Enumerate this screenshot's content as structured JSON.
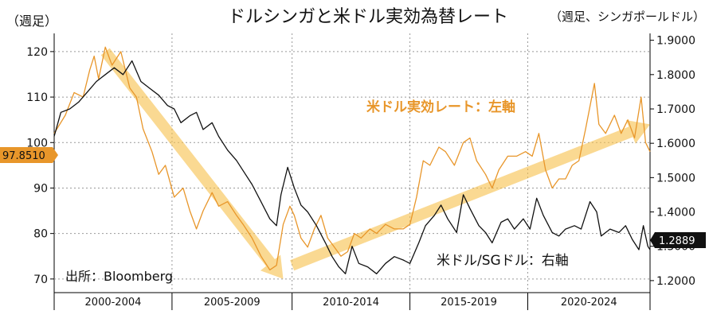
{
  "chart_data": {
    "type": "line",
    "title": "ドルシンガと米ドル実効為替レート",
    "subtitle_right": "（週足、シンガポールドル）",
    "left_axis_label": "（週足）",
    "left_axis": {
      "min": 67,
      "max": 124,
      "ticks": [
        70,
        80,
        90,
        100,
        110,
        120
      ]
    },
    "right_axis": {
      "min": 1.165,
      "max": 1.92,
      "ticks": [
        1.2,
        1.3,
        1.4,
        1.5,
        1.6,
        1.7,
        1.8,
        1.9
      ],
      "tick_labels": [
        "1.2000",
        "1.3000",
        "1.4000",
        "1.5000",
        "1.6000",
        "1.7000",
        "1.8000",
        "1.9000"
      ]
    },
    "x_range": [
      1998.5,
      2025.3
    ],
    "x_bands": [
      {
        "label": "2000-2004",
        "from": 1998.5,
        "to": 2003.8
      },
      {
        "label": "2005-2009",
        "from": 2003.8,
        "to": 2009.2
      },
      {
        "label": "2010-2014",
        "from": 2009.2,
        "to": 2014.5
      },
      {
        "label": "2015-2019",
        "from": 2014.5,
        "to": 2019.8
      },
      {
        "label": "2020-2024",
        "from": 2019.8,
        "to": 2025.3
      }
    ],
    "series": [
      {
        "name": "米ドル実効レート：左軸",
        "axis": "left",
        "color": "#e8962a",
        "last_label": "97.8510",
        "points": [
          [
            1998.5,
            102
          ],
          [
            1999.0,
            106
          ],
          [
            1999.4,
            111
          ],
          [
            1999.8,
            110
          ],
          [
            2000.1,
            116
          ],
          [
            2000.3,
            119
          ],
          [
            2000.5,
            114
          ],
          [
            2000.8,
            121
          ],
          [
            2001.1,
            117
          ],
          [
            2001.5,
            120
          ],
          [
            2001.9,
            112
          ],
          [
            2002.2,
            110
          ],
          [
            2002.5,
            103
          ],
          [
            2002.9,
            98
          ],
          [
            2003.2,
            93
          ],
          [
            2003.5,
            95
          ],
          [
            2003.9,
            88
          ],
          [
            2004.3,
            90
          ],
          [
            2004.6,
            85
          ],
          [
            2004.9,
            81
          ],
          [
            2005.2,
            85
          ],
          [
            2005.6,
            89
          ],
          [
            2005.9,
            86
          ],
          [
            2006.3,
            87
          ],
          [
            2006.7,
            84
          ],
          [
            2007.0,
            82
          ],
          [
            2007.4,
            79
          ],
          [
            2007.8,
            75
          ],
          [
            2008.2,
            72
          ],
          [
            2008.5,
            73
          ],
          [
            2008.8,
            82
          ],
          [
            2009.1,
            86
          ],
          [
            2009.3,
            84
          ],
          [
            2009.6,
            79
          ],
          [
            2009.9,
            77
          ],
          [
            2010.2,
            81
          ],
          [
            2010.5,
            84
          ],
          [
            2010.8,
            79
          ],
          [
            2011.1,
            77
          ],
          [
            2011.4,
            75
          ],
          [
            2011.7,
            76
          ],
          [
            2012.0,
            80
          ],
          [
            2012.3,
            79
          ],
          [
            2012.7,
            81
          ],
          [
            2013.0,
            80
          ],
          [
            2013.4,
            82
          ],
          [
            2013.8,
            81
          ],
          [
            2014.2,
            81
          ],
          [
            2014.5,
            82
          ],
          [
            2014.8,
            88
          ],
          [
            2015.1,
            96
          ],
          [
            2015.4,
            95
          ],
          [
            2015.8,
            99
          ],
          [
            2016.1,
            98
          ],
          [
            2016.5,
            95
          ],
          [
            2016.9,
            100
          ],
          [
            2017.2,
            101
          ],
          [
            2017.5,
            96
          ],
          [
            2017.9,
            93
          ],
          [
            2018.2,
            90
          ],
          [
            2018.5,
            94
          ],
          [
            2018.9,
            97
          ],
          [
            2019.3,
            97
          ],
          [
            2019.7,
            98
          ],
          [
            2020.0,
            97
          ],
          [
            2020.3,
            102
          ],
          [
            2020.6,
            94
          ],
          [
            2020.9,
            90
          ],
          [
            2021.2,
            92
          ],
          [
            2021.5,
            92
          ],
          [
            2021.8,
            95
          ],
          [
            2022.1,
            96
          ],
          [
            2022.4,
            103
          ],
          [
            2022.8,
            113
          ],
          [
            2023.0,
            104
          ],
          [
            2023.3,
            102
          ],
          [
            2023.7,
            106
          ],
          [
            2024.0,
            102
          ],
          [
            2024.3,
            105
          ],
          [
            2024.6,
            101
          ],
          [
            2024.9,
            110
          ],
          [
            2025.1,
            100
          ],
          [
            2025.3,
            98
          ]
        ]
      },
      {
        "name": "米ドル/SGドル：右軸",
        "axis": "right",
        "color": "#111111",
        "last_label": "1.2889",
        "points": [
          [
            1998.5,
            1.62
          ],
          [
            1998.8,
            1.69
          ],
          [
            1999.2,
            1.7
          ],
          [
            1999.6,
            1.72
          ],
          [
            2000.0,
            1.75
          ],
          [
            2000.4,
            1.78
          ],
          [
            2000.8,
            1.8
          ],
          [
            2001.2,
            1.82
          ],
          [
            2001.6,
            1.8
          ],
          [
            2002.0,
            1.84
          ],
          [
            2002.4,
            1.78
          ],
          [
            2002.8,
            1.76
          ],
          [
            2003.2,
            1.74
          ],
          [
            2003.6,
            1.71
          ],
          [
            2003.9,
            1.7
          ],
          [
            2004.2,
            1.66
          ],
          [
            2004.6,
            1.68
          ],
          [
            2004.9,
            1.69
          ],
          [
            2005.2,
            1.64
          ],
          [
            2005.6,
            1.66
          ],
          [
            2005.9,
            1.62
          ],
          [
            2006.3,
            1.58
          ],
          [
            2006.7,
            1.55
          ],
          [
            2007.0,
            1.52
          ],
          [
            2007.4,
            1.48
          ],
          [
            2007.8,
            1.43
          ],
          [
            2008.2,
            1.38
          ],
          [
            2008.5,
            1.36
          ],
          [
            2008.7,
            1.45
          ],
          [
            2009.0,
            1.53
          ],
          [
            2009.3,
            1.47
          ],
          [
            2009.6,
            1.42
          ],
          [
            2009.9,
            1.4
          ],
          [
            2010.3,
            1.36
          ],
          [
            2010.7,
            1.31
          ],
          [
            2011.0,
            1.27
          ],
          [
            2011.3,
            1.24
          ],
          [
            2011.6,
            1.22
          ],
          [
            2011.9,
            1.3
          ],
          [
            2012.2,
            1.25
          ],
          [
            2012.6,
            1.24
          ],
          [
            2013.0,
            1.22
          ],
          [
            2013.4,
            1.25
          ],
          [
            2013.8,
            1.27
          ],
          [
            2014.2,
            1.26
          ],
          [
            2014.5,
            1.25
          ],
          [
            2014.9,
            1.31
          ],
          [
            2015.2,
            1.36
          ],
          [
            2015.6,
            1.39
          ],
          [
            2015.9,
            1.42
          ],
          [
            2016.2,
            1.38
          ],
          [
            2016.6,
            1.34
          ],
          [
            2016.9,
            1.45
          ],
          [
            2017.2,
            1.41
          ],
          [
            2017.6,
            1.36
          ],
          [
            2017.9,
            1.34
          ],
          [
            2018.2,
            1.31
          ],
          [
            2018.6,
            1.37
          ],
          [
            2018.9,
            1.38
          ],
          [
            2019.2,
            1.35
          ],
          [
            2019.6,
            1.38
          ],
          [
            2019.9,
            1.35
          ],
          [
            2020.2,
            1.44
          ],
          [
            2020.5,
            1.39
          ],
          [
            2020.9,
            1.34
          ],
          [
            2021.2,
            1.33
          ],
          [
            2021.5,
            1.35
          ],
          [
            2021.9,
            1.36
          ],
          [
            2022.2,
            1.35
          ],
          [
            2022.6,
            1.43
          ],
          [
            2022.9,
            1.4
          ],
          [
            2023.1,
            1.33
          ],
          [
            2023.5,
            1.35
          ],
          [
            2023.9,
            1.34
          ],
          [
            2024.2,
            1.36
          ],
          [
            2024.5,
            1.32
          ],
          [
            2024.8,
            1.29
          ],
          [
            2025.0,
            1.36
          ],
          [
            2025.2,
            1.3
          ],
          [
            2025.3,
            1.29
          ]
        ]
      }
    ],
    "trend_arrows": [
      {
        "from": [
          2000.8,
          120
        ],
        "to": [
          2008.8,
          70
        ],
        "axis": "left"
      },
      {
        "from": [
          2009.2,
          73
        ],
        "to": [
          2025.3,
          104
        ],
        "axis": "left"
      }
    ],
    "annotations": {
      "orange_series_label": "米ドル実効レート：左軸",
      "black_series_label": "米ドル/SGドル：右軸",
      "source": "出所：Bloomberg"
    }
  }
}
